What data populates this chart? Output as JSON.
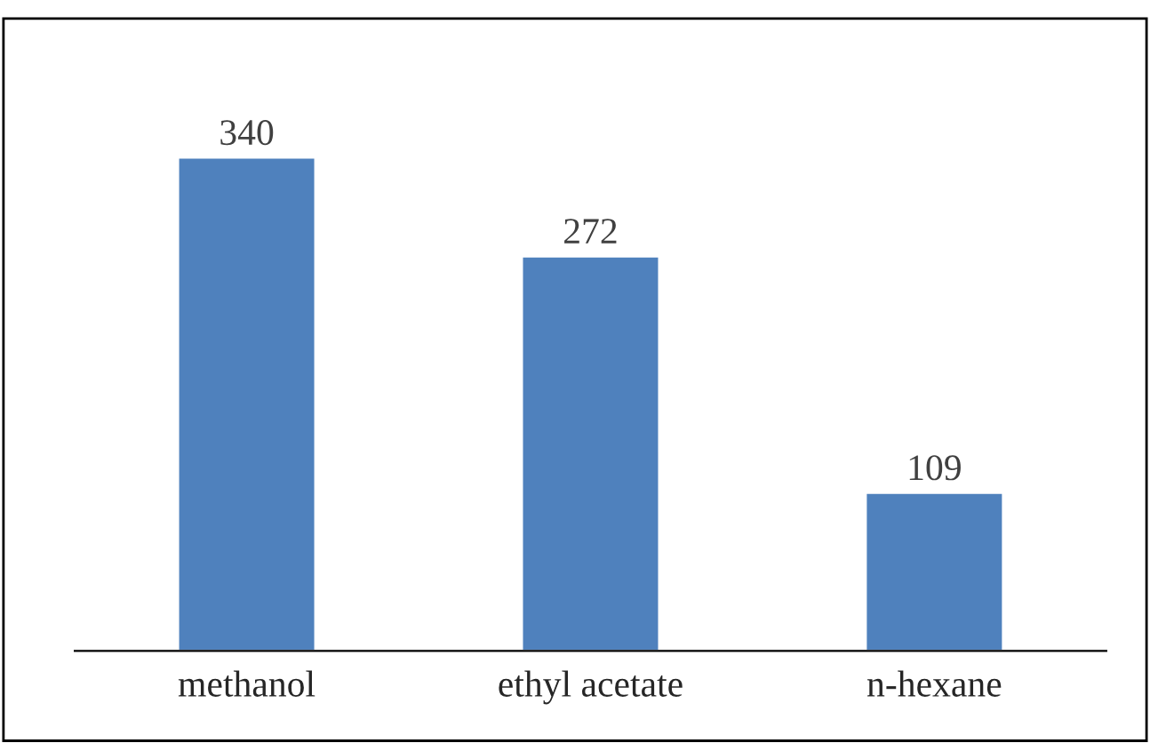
{
  "chart_data": {
    "type": "bar",
    "categories": [
      "methanol",
      "ethyl acetate",
      "n-hexane"
    ],
    "values": [
      340,
      272,
      109
    ],
    "color": "#4f81bd",
    "data_labels": true,
    "grid": false,
    "legend": false
  }
}
